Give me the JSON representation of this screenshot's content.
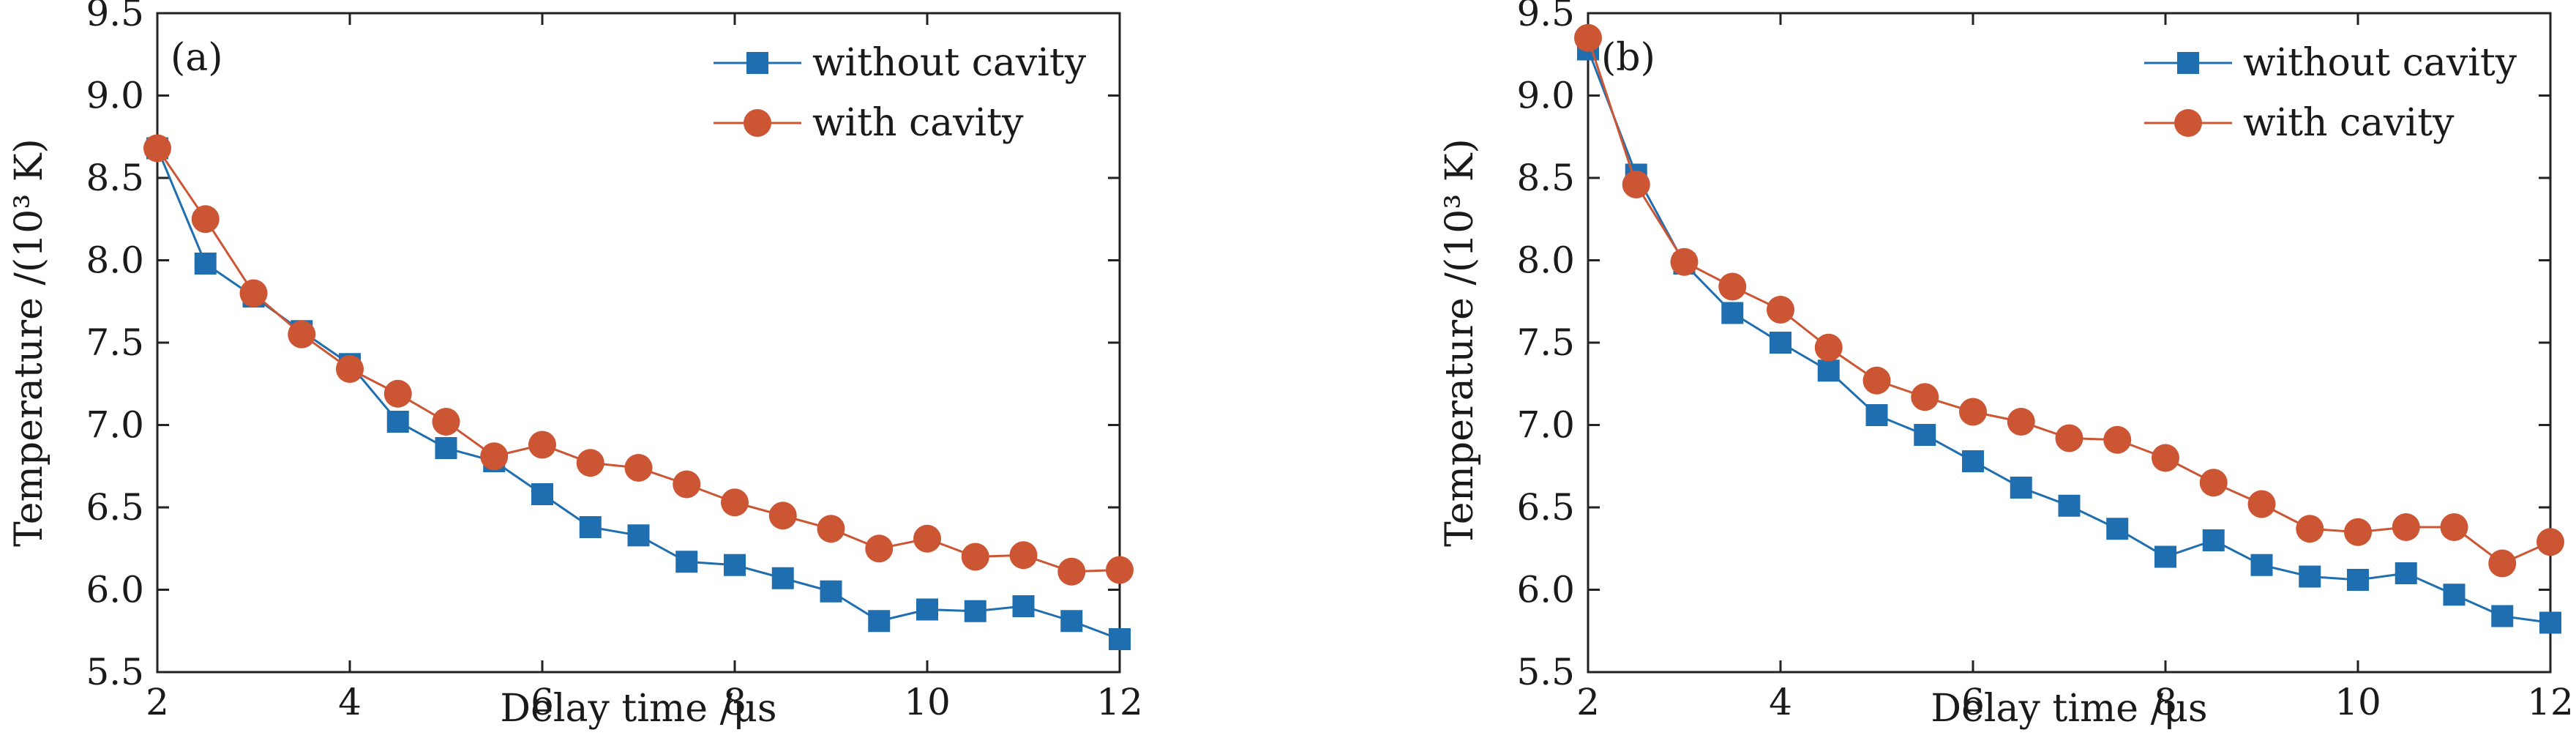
{
  "chart_data": [
    {
      "type": "line",
      "panel_label": "(a)",
      "xlabel": "Delay time /μs",
      "ylabel": "Temperature /(10³ K)",
      "xlim": [
        2,
        12
      ],
      "ylim": [
        5.5,
        9.5
      ],
      "x_ticks": [
        2,
        4,
        6,
        8,
        10,
        12
      ],
      "y_ticks": [
        "5.5",
        "6.0",
        "6.5",
        "7.0",
        "7.5",
        "8.0",
        "8.5",
        "9.0",
        "9.5"
      ],
      "grid": false,
      "legend_position": "top-right",
      "x": [
        2,
        2.5,
        3,
        3.5,
        4,
        4.5,
        5,
        5.5,
        6,
        6.5,
        7,
        7.5,
        8,
        8.5,
        9,
        9.5,
        10,
        10.5,
        11,
        11.5,
        12
      ],
      "series": [
        {
          "name": "without cavity",
          "color": "#1f6fb0",
          "marker": "square",
          "values": [
            8.68,
            7.98,
            7.78,
            7.57,
            7.37,
            7.02,
            6.86,
            6.78,
            6.58,
            6.38,
            6.33,
            6.17,
            6.15,
            6.07,
            5.99,
            5.81,
            5.88,
            5.87,
            5.9,
            5.81,
            5.7
          ]
        },
        {
          "name": "with cavity",
          "color": "#cc5533",
          "marker": "circle",
          "values": [
            8.68,
            8.25,
            7.8,
            7.55,
            7.34,
            7.19,
            7.02,
            6.81,
            6.88,
            6.77,
            6.74,
            6.64,
            6.53,
            6.45,
            6.37,
            6.25,
            6.31,
            6.2,
            6.21,
            6.11,
            6.12
          ]
        }
      ]
    },
    {
      "type": "line",
      "panel_label": "(b)",
      "xlabel": "Delay time /μs",
      "ylabel": "Temperature /(10³ K)",
      "xlim": [
        2,
        12
      ],
      "ylim": [
        5.5,
        9.5
      ],
      "x_ticks": [
        2,
        4,
        6,
        8,
        10,
        12
      ],
      "y_ticks": [
        "5.5",
        "6.0",
        "6.5",
        "7.0",
        "7.5",
        "8.0",
        "8.5",
        "9.0",
        "9.5"
      ],
      "grid": false,
      "legend_position": "top-right",
      "x": [
        2,
        2.5,
        3,
        3.5,
        4,
        4.5,
        5,
        5.5,
        6,
        6.5,
        7,
        7.5,
        8,
        8.5,
        9,
        9.5,
        10,
        10.5,
        11,
        11.5,
        12
      ],
      "series": [
        {
          "name": "without cavity",
          "color": "#1f6fb0",
          "marker": "square",
          "values": [
            9.28,
            8.52,
            7.98,
            7.68,
            7.5,
            7.33,
            7.06,
            6.94,
            6.78,
            6.62,
            6.51,
            6.37,
            6.2,
            6.3,
            6.15,
            6.08,
            6.06,
            6.1,
            5.97,
            5.84,
            5.8
          ]
        },
        {
          "name": "with cavity",
          "color": "#cc5533",
          "marker": "circle",
          "values": [
            9.35,
            8.46,
            7.99,
            7.84,
            7.7,
            7.47,
            7.27,
            7.17,
            7.08,
            7.02,
            6.92,
            6.91,
            6.8,
            6.65,
            6.52,
            6.37,
            6.35,
            6.38,
            6.38,
            6.16,
            6.29
          ]
        }
      ]
    }
  ]
}
